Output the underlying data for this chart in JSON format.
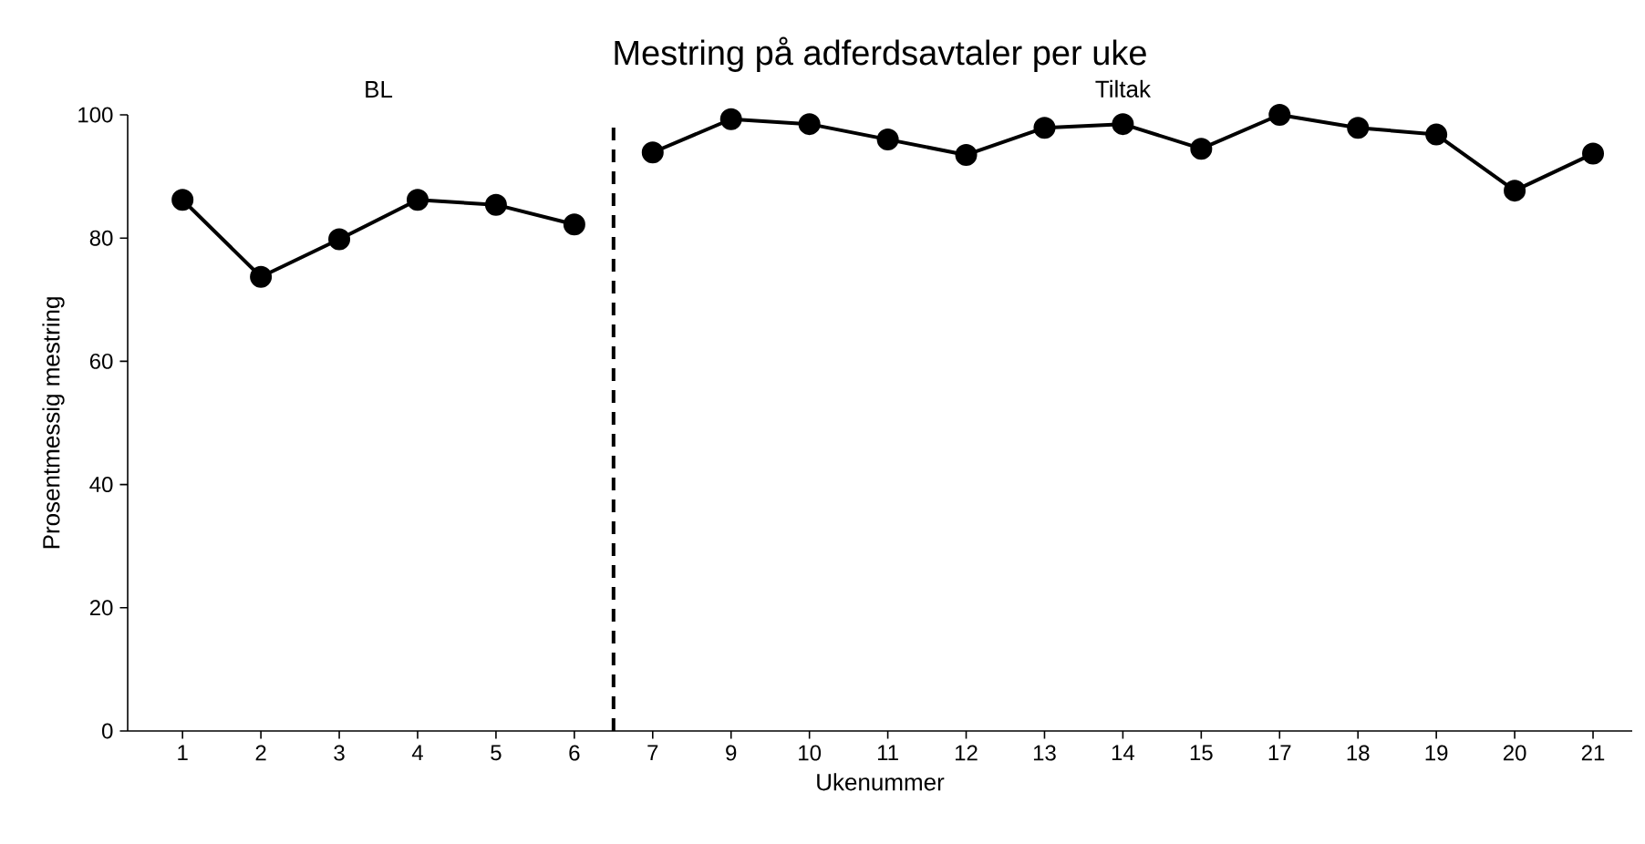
{
  "chart_data": {
    "type": "line",
    "title": "Mestring på adferdsavtaler per uke",
    "xlabel": "Ukenummer",
    "ylabel": "Prosentmessig mestring",
    "categories": [
      "1",
      "2",
      "3",
      "4",
      "5",
      "6",
      "7",
      "9",
      "10",
      "11",
      "12",
      "13",
      "14",
      "15",
      "17",
      "18",
      "19",
      "20",
      "21"
    ],
    "series": [
      {
        "color": "#000000",
        "values": [
          86.2,
          73.7,
          79.8,
          86.2,
          85.4,
          82.2,
          null,
          null,
          null,
          null,
          null,
          null,
          null,
          null,
          null,
          null,
          null,
          null,
          null
        ]
      },
      {
        "color": "#000000",
        "values": [
          null,
          null,
          null,
          null,
          null,
          null,
          93.9,
          99.3,
          98.5,
          96.0,
          93.5,
          97.9,
          98.5,
          94.5,
          100,
          97.9,
          96.8,
          87.7,
          93.7
        ]
      }
    ],
    "ylim": [
      0,
      100
    ],
    "yticks": [
      0,
      20,
      40,
      60,
      80,
      100
    ],
    "marker": "circle",
    "line_style": "solid",
    "grid": false,
    "legend": false,
    "annotations": [
      "BL",
      "Tiltak"
    ]
  }
}
